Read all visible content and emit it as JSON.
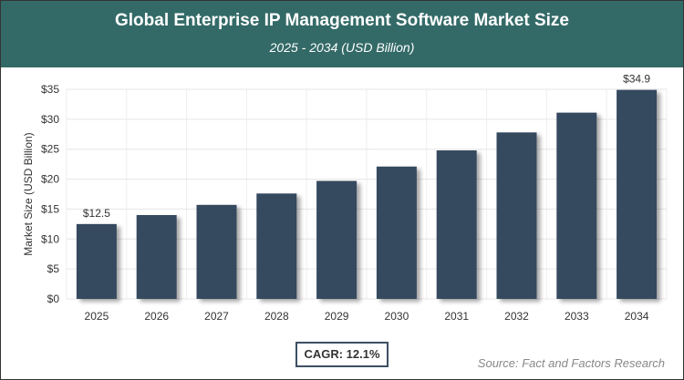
{
  "header": {
    "title": "Global Enterprise IP Management Software Market Size",
    "subtitle": "2025 - 2034 (USD Billion)"
  },
  "chart_data": {
    "type": "bar",
    "categories": [
      "2025",
      "2026",
      "2027",
      "2028",
      "2029",
      "2030",
      "2031",
      "2032",
      "2033",
      "2034"
    ],
    "values": [
      12.5,
      14.0,
      15.7,
      17.6,
      19.7,
      22.1,
      24.8,
      27.8,
      31.1,
      34.9
    ],
    "data_labels": {
      "0": "$12.5",
      "9": "$34.9"
    },
    "ylabel": "Market Size (USD Billion)",
    "xlabel": "",
    "ylim": [
      0,
      35
    ],
    "yticks": [
      0,
      5,
      10,
      15,
      20,
      25,
      30,
      35
    ],
    "ytick_labels": [
      "$0",
      "$5",
      "$10",
      "$15",
      "$20",
      "$25",
      "$30",
      "$35"
    ],
    "grid": true,
    "bar_color": "#36485e"
  },
  "cagr": "CAGR: 12.1%",
  "source": "Source: Fact and Factors Research"
}
